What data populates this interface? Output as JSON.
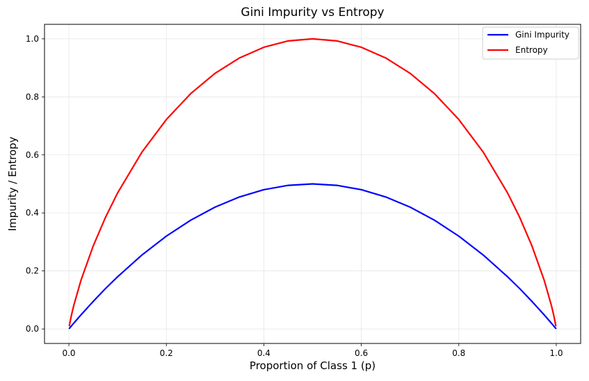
{
  "chart_data": {
    "type": "line",
    "title": "Gini Impurity vs Entropy",
    "xlabel": "Proportion of Class 1 (p)",
    "ylabel": "Impurity / Entropy",
    "xlim": [
      -0.05,
      1.05
    ],
    "ylim": [
      -0.05,
      1.05
    ],
    "xticks": [
      0.0,
      0.2,
      0.4,
      0.6,
      0.8,
      1.0
    ],
    "yticks": [
      0.0,
      0.2,
      0.4,
      0.6,
      0.8,
      1.0
    ],
    "xtick_labels": [
      "0.0",
      "0.2",
      "0.4",
      "0.6",
      "0.8",
      "1.0"
    ],
    "ytick_labels": [
      "0.0",
      "0.2",
      "0.4",
      "0.6",
      "0.8",
      "1.0"
    ],
    "grid": true,
    "legend_position": "top-right",
    "series": [
      {
        "name": "Gini Impurity",
        "color": "#0000ff",
        "x": [
          0.001,
          0.01,
          0.025,
          0.05,
          0.075,
          0.1,
          0.15,
          0.2,
          0.25,
          0.3,
          0.35,
          0.4,
          0.45,
          0.5,
          0.55,
          0.6,
          0.65,
          0.7,
          0.75,
          0.8,
          0.85,
          0.9,
          0.925,
          0.95,
          0.975,
          0.99,
          0.999
        ],
        "y": [
          0.002,
          0.0198,
          0.0488,
          0.095,
          0.139,
          0.18,
          0.255,
          0.32,
          0.375,
          0.42,
          0.455,
          0.48,
          0.495,
          0.5,
          0.495,
          0.48,
          0.455,
          0.42,
          0.375,
          0.32,
          0.255,
          0.18,
          0.139,
          0.095,
          0.0488,
          0.0198,
          0.002
        ]
      },
      {
        "name": "Entropy",
        "color": "#ff0000",
        "x": [
          0.001,
          0.005,
          0.01,
          0.025,
          0.05,
          0.075,
          0.1,
          0.15,
          0.2,
          0.25,
          0.3,
          0.35,
          0.4,
          0.45,
          0.5,
          0.55,
          0.6,
          0.65,
          0.7,
          0.75,
          0.8,
          0.85,
          0.9,
          0.925,
          0.95,
          0.975,
          0.99,
          0.995,
          0.999
        ],
        "y": [
          0.0114,
          0.0454,
          0.0808,
          0.1687,
          0.2864,
          0.3843,
          0.469,
          0.6098,
          0.7219,
          0.8113,
          0.8813,
          0.9341,
          0.971,
          0.9928,
          1.0,
          0.9928,
          0.971,
          0.9341,
          0.8813,
          0.8113,
          0.7219,
          0.6098,
          0.469,
          0.3843,
          0.2864,
          0.1687,
          0.0808,
          0.0454,
          0.0114
        ]
      }
    ]
  }
}
